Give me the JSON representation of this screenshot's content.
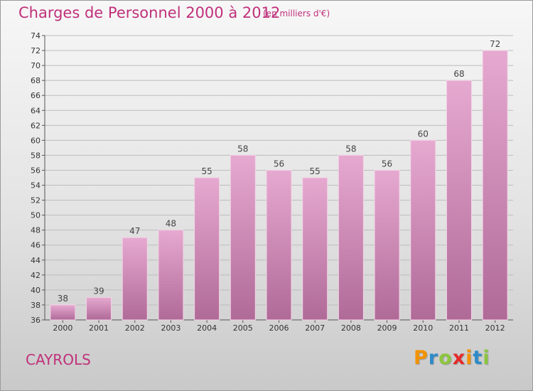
{
  "header": {
    "title": "Charges de Personnel 2000 à 2012",
    "subtitle": "(en milliers d'€)"
  },
  "footer": {
    "commune": "CAYROLS",
    "logo_letters": [
      "P",
      "r",
      "o",
      "x",
      "i",
      "t",
      "i"
    ],
    "logo_colors": [
      "#f39200",
      "#2e8bc9",
      "#8cc63f",
      "#e52a2a",
      "#f39200",
      "#2e8bc9",
      "#8cc63f"
    ]
  },
  "colors": {
    "accent": "#c0307a",
    "bar_top": "#e6a9d0",
    "bar_bottom": "#b06a98",
    "grid": "#bdbdbd"
  },
  "chart_data": {
    "type": "bar",
    "title": "Charges de Personnel 2000 à 2012",
    "subtitle": "(en milliers d'€)",
    "categories": [
      "2000",
      "2001",
      "2002",
      "2003",
      "2004",
      "2005",
      "2006",
      "2007",
      "2008",
      "2009",
      "2010",
      "2011",
      "2012"
    ],
    "values": [
      38,
      39,
      47,
      48,
      55,
      58,
      56,
      55,
      58,
      56,
      60,
      68,
      72
    ],
    "ylim": [
      36,
      74
    ],
    "ytick_step": 2,
    "grid": true
  }
}
